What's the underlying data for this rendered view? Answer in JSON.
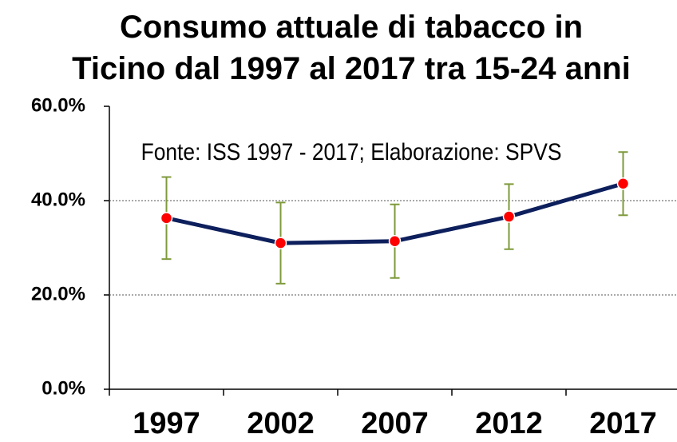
{
  "chart_data": {
    "type": "line",
    "title": "Consumo attuale di tabacco in Ticino dal 1997 al 2017 tra 15-24 anni",
    "subtitle": "Fonte: ISS 1997 - 2017; Elaborazione: SPVS",
    "categories": [
      "1997",
      "2002",
      "2007",
      "2012",
      "2017"
    ],
    "values": [
      36.3,
      31.0,
      31.4,
      36.6,
      43.6
    ],
    "errors": [
      8.7,
      8.6,
      7.8,
      6.9,
      6.7
    ],
    "color": "#0d1f5c",
    "marker_color": "#ff0000",
    "error_color": "#7f9a3c",
    "ylim": [
      0,
      60
    ],
    "yticks": [
      {
        "value": 0,
        "label": "0.0%"
      },
      {
        "value": 20,
        "label": "20.0%"
      },
      {
        "value": 40,
        "label": "40.0%"
      },
      {
        "value": 60,
        "label": "60.0%"
      }
    ],
    "grid": true
  }
}
